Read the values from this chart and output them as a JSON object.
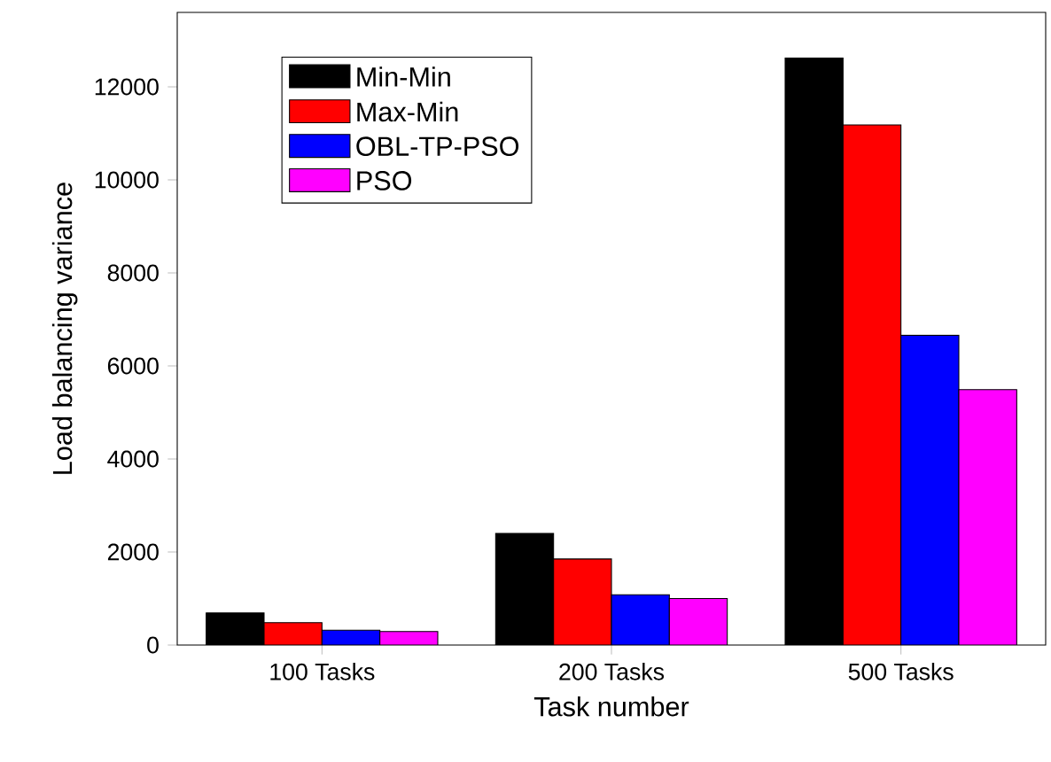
{
  "chart_data": {
    "type": "bar",
    "xlabel": "Task number",
    "ylabel": "Load balancing variance",
    "categories": [
      "100 Tasks",
      "200 Tasks",
      "500 Tasks"
    ],
    "series": [
      {
        "name": "Min-Min",
        "color": "#000000",
        "values": [
          690,
          2400,
          12620
        ]
      },
      {
        "name": "Max-Min",
        "color": "#ff0000",
        "values": [
          480,
          1850,
          11180
        ]
      },
      {
        "name": "OBL-TP-PSO",
        "color": "#0000ff",
        "values": [
          320,
          1080,
          6660
        ]
      },
      {
        "name": "PSO",
        "color": "#ff00ff",
        "values": [
          290,
          1000,
          5490
        ]
      }
    ],
    "ylim": [
      0,
      13600
    ],
    "yticks": [
      0,
      2000,
      4000,
      6000,
      8000,
      10000,
      12000
    ],
    "legend": "top left",
    "grid": false
  }
}
